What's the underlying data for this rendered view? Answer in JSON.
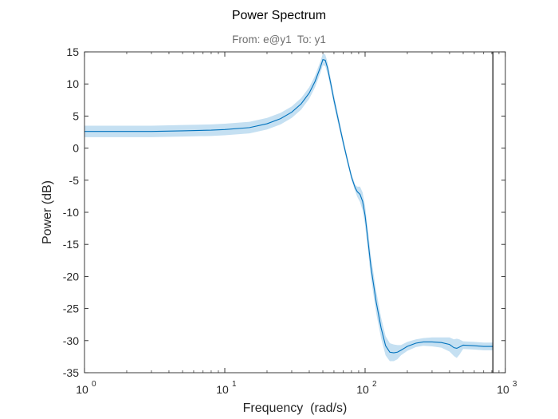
{
  "chart_data": {
    "type": "line",
    "title": "Power Spectrum",
    "subtitle": "From: e@y1  To: y1",
    "xlabel": "Frequency  (rad/s)",
    "ylabel": "Power (dB)",
    "x_scale": "log",
    "xlim": [
      1,
      1000
    ],
    "ylim": [
      -35,
      15
    ],
    "x_tick_labels": [
      {
        "base": "10",
        "exp": "0"
      },
      {
        "base": "10",
        "exp": "1"
      },
      {
        "base": "10",
        "exp": "2"
      },
      {
        "base": "10",
        "exp": "3"
      }
    ],
    "y_ticks": [
      "15",
      "10",
      "5",
      "0",
      "-5",
      "-10",
      "-15",
      "-20",
      "-25",
      "-30",
      "-35"
    ],
    "grid": false,
    "nyquist_line_x": 815,
    "series": [
      {
        "x": [
          1,
          2,
          3,
          5,
          8,
          10,
          15,
          20,
          25,
          30,
          35,
          40,
          44,
          48,
          50,
          52,
          54,
          57,
          60,
          65,
          70,
          75,
          80,
          85,
          88,
          92,
          96,
          100,
          105,
          110,
          120,
          130,
          140,
          150,
          160,
          170,
          180,
          200,
          230,
          260,
          300,
          350,
          400,
          430,
          450,
          470,
          500,
          600,
          700,
          815
        ],
        "y": [
          2.6,
          2.6,
          2.6,
          2.7,
          2.8,
          2.9,
          3.2,
          3.8,
          4.6,
          5.6,
          6.9,
          8.6,
          10.4,
          12.6,
          13.8,
          13.7,
          12.5,
          10.0,
          7.5,
          4.0,
          0.8,
          -2.0,
          -4.5,
          -6.2,
          -6.8,
          -7.2,
          -8.3,
          -10.5,
          -14.5,
          -18.5,
          -24.0,
          -28.0,
          -30.8,
          -31.8,
          -31.9,
          -31.8,
          -31.5,
          -30.9,
          -30.4,
          -30.2,
          -30.2,
          -30.3,
          -30.6,
          -31.1,
          -31.2,
          -31.0,
          -30.7,
          -30.8,
          -30.9,
          -30.9
        ],
        "band": [
          0.9,
          0.9,
          0.9,
          0.9,
          0.9,
          0.9,
          0.9,
          0.9,
          0.9,
          0.9,
          0.9,
          0.9,
          0.9,
          0.9,
          0.9,
          0.9,
          0.9,
          0.8,
          0.8,
          0.7,
          0.6,
          0.5,
          0.5,
          0.5,
          0.8,
          1.2,
          1.4,
          1.5,
          1.6,
          1.7,
          1.7,
          1.6,
          1.5,
          1.4,
          1.3,
          1.1,
          0.8,
          0.7,
          0.6,
          0.6,
          0.7,
          0.8,
          1.1,
          1.3,
          1.5,
          1.2,
          0.6,
          0.6,
          0.6,
          0.6
        ]
      }
    ],
    "colors": {
      "line": "#0072bd",
      "band": "#c5e0f2",
      "axis": "#262626",
      "nyquist": "#000000"
    }
  }
}
